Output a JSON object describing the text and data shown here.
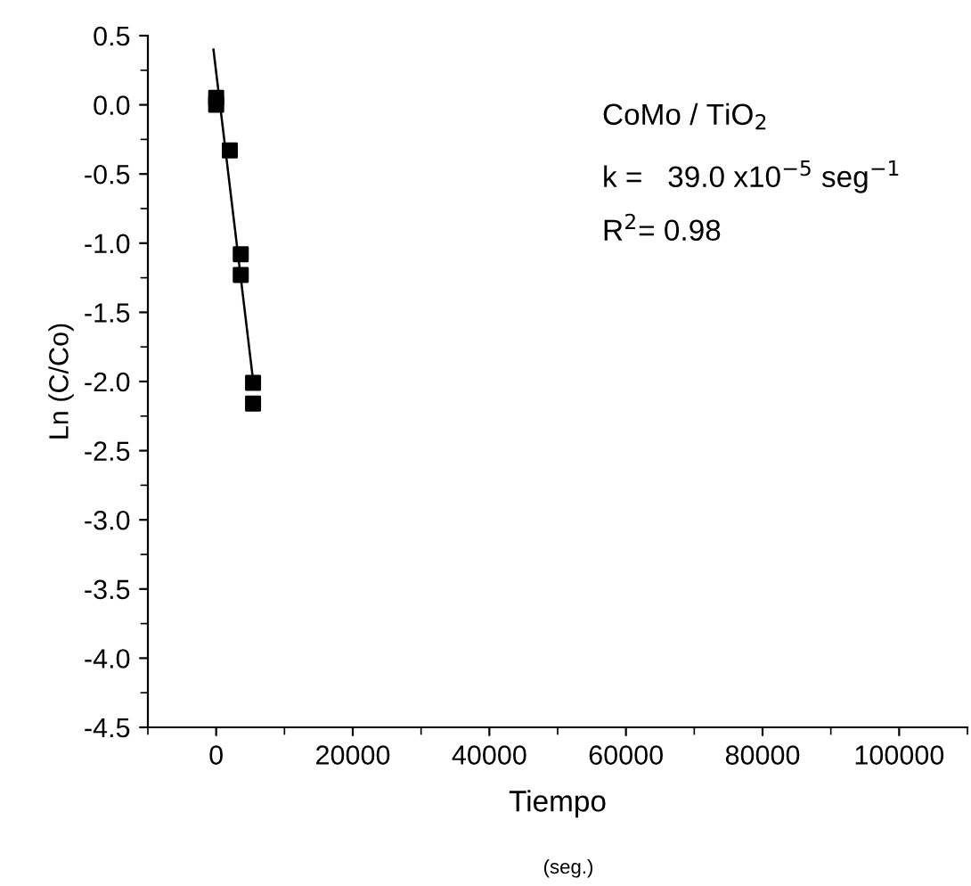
{
  "chart_data": {
    "type": "scatter",
    "xlabel": "Tiempo",
    "ylabel": "Ln (C/Co)",
    "annotations": [
      "CoMo / TiO$_{2}$",
      "k =   39.0 x10$^{−5}$ seg$^{−1}$",
      "R$^{2}$= 0.98",
      "(seg.)"
    ],
    "series": [
      {
        "color": "#000000",
        "marker": "square",
        "x": [
          0,
          0,
          2000,
          3600,
          3600,
          5400,
          5400
        ],
        "values": [
          0.05,
          0.0,
          -0.33,
          -1.08,
          -1.23,
          -2.01,
          -2.16
        ]
      },
      {
        "type": "line",
        "color": "#000000",
        "marker": "none",
        "line_style": "solid",
        "x": [
          -400,
          5400
        ],
        "values": [
          0.4,
          -1.99
        ]
      }
    ],
    "xlim": [
      -10000,
      110000
    ],
    "xticks": [
      0,
      20000,
      40000,
      60000,
      80000,
      100000
    ],
    "ylim": [
      -4.5,
      0.5
    ],
    "yticks": [
      0.5,
      {
        "value": 0,
        "label": "0.0"
      },
      -0.5,
      {
        "value": -1,
        "label": "-1.0"
      },
      -1.5,
      {
        "value": -2,
        "label": "-2.0"
      },
      -2.5,
      {
        "value": -3,
        "label": "-3.0"
      },
      -3.5,
      {
        "value": -4,
        "label": "-4.0"
      },
      -4.5
    ],
    "grid": false,
    "legend": false
  }
}
